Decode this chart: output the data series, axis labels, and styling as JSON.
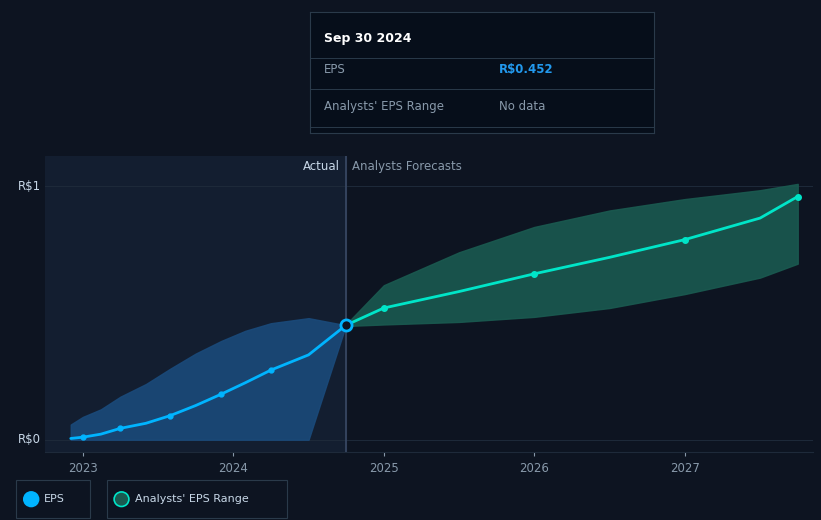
{
  "background_color": "#0d1421",
  "plot_bg_color": "#0d1421",
  "ylabel_r0": "R$0",
  "ylabel_r1": "R$1",
  "x_ticks": [
    2023,
    2024,
    2025,
    2026,
    2027
  ],
  "actual_cutoff": 2024.748,
  "tooltip_date": "Sep 30 2024",
  "tooltip_eps_label": "EPS",
  "tooltip_eps_value": "R$0.452",
  "tooltip_range_label": "Analysts' EPS Range",
  "tooltip_range_value": "No data",
  "actual_label": "Actual",
  "forecast_label": "Analysts Forecasts",
  "legend_eps": "EPS",
  "legend_range": "Analysts' EPS Range",
  "hist_x": [
    2022.92,
    2023.0,
    2023.12,
    2023.25,
    2023.42,
    2023.58,
    2023.75,
    2023.92,
    2024.08,
    2024.25,
    2024.5,
    2024.748
  ],
  "hist_y": [
    0.005,
    0.01,
    0.022,
    0.045,
    0.065,
    0.095,
    0.135,
    0.18,
    0.225,
    0.275,
    0.335,
    0.452
  ],
  "hist_band_upper": [
    0.06,
    0.09,
    0.12,
    0.17,
    0.22,
    0.28,
    0.34,
    0.39,
    0.43,
    0.46,
    0.48,
    0.452
  ],
  "hist_band_lower": [
    0.0,
    0.0,
    0.0,
    0.0,
    0.0,
    0.0,
    0.0,
    0.0,
    0.0,
    0.0,
    0.0,
    0.452
  ],
  "forecast_x": [
    2024.748,
    2025.0,
    2025.5,
    2026.0,
    2026.5,
    2027.0,
    2027.5,
    2027.75
  ],
  "forecast_y": [
    0.452,
    0.52,
    0.585,
    0.655,
    0.72,
    0.79,
    0.875,
    0.96
  ],
  "forecast_band_upper": [
    0.455,
    0.61,
    0.74,
    0.84,
    0.905,
    0.95,
    0.985,
    1.01
  ],
  "forecast_band_lower": [
    0.449,
    0.455,
    0.465,
    0.485,
    0.52,
    0.575,
    0.64,
    0.695
  ],
  "hist_line_color": "#00b4ff",
  "hist_band_color": "#1a4a7a",
  "hist_band_alpha": 0.9,
  "forecast_line_color": "#00e5c8",
  "forecast_band_color": "#1a5a50",
  "forecast_band_alpha": 0.9,
  "divider_color": "#3a4a66",
  "divider_bg_color": "#131e30",
  "grid_color": "#1e2a3a",
  "text_color": "#8899aa",
  "label_color": "#c8d8e8",
  "tooltip_bg": "#060e1a",
  "tooltip_border": "#2a3a4a",
  "eps_value_color": "#2299ee",
  "ylim": [
    -0.05,
    1.12
  ],
  "xlim": [
    2022.75,
    2027.85
  ],
  "hist_marker_indices": [
    1,
    3,
    5,
    7,
    9
  ],
  "fore_marker_indices": [
    1,
    3,
    5
  ]
}
